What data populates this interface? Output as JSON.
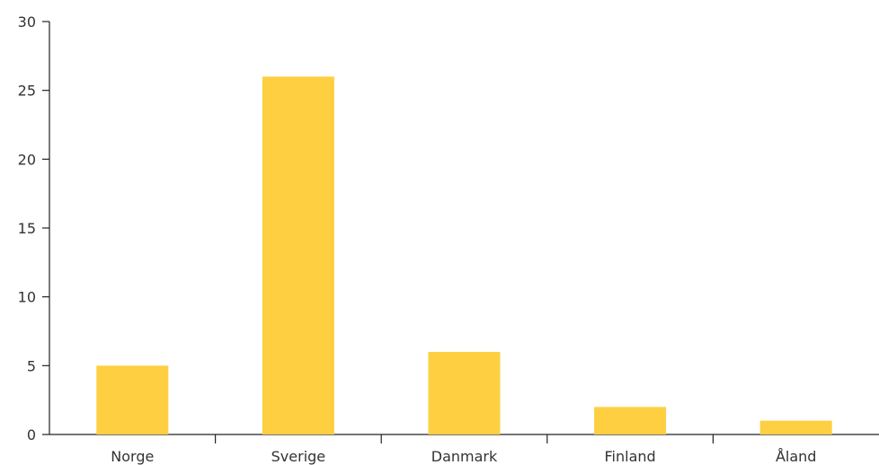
{
  "chart_data": {
    "type": "bar",
    "categories": [
      "Norge",
      "Sverige",
      "Danmark",
      "Finland",
      "Åland"
    ],
    "values": [
      5,
      26,
      6,
      2,
      1
    ],
    "title": "",
    "xlabel": "",
    "ylabel": "",
    "ylim": [
      0,
      30
    ],
    "yticks": [
      0,
      5,
      10,
      15,
      20,
      25,
      30
    ],
    "bar_color": "#FDCF41",
    "grid": false,
    "legend": "none"
  }
}
